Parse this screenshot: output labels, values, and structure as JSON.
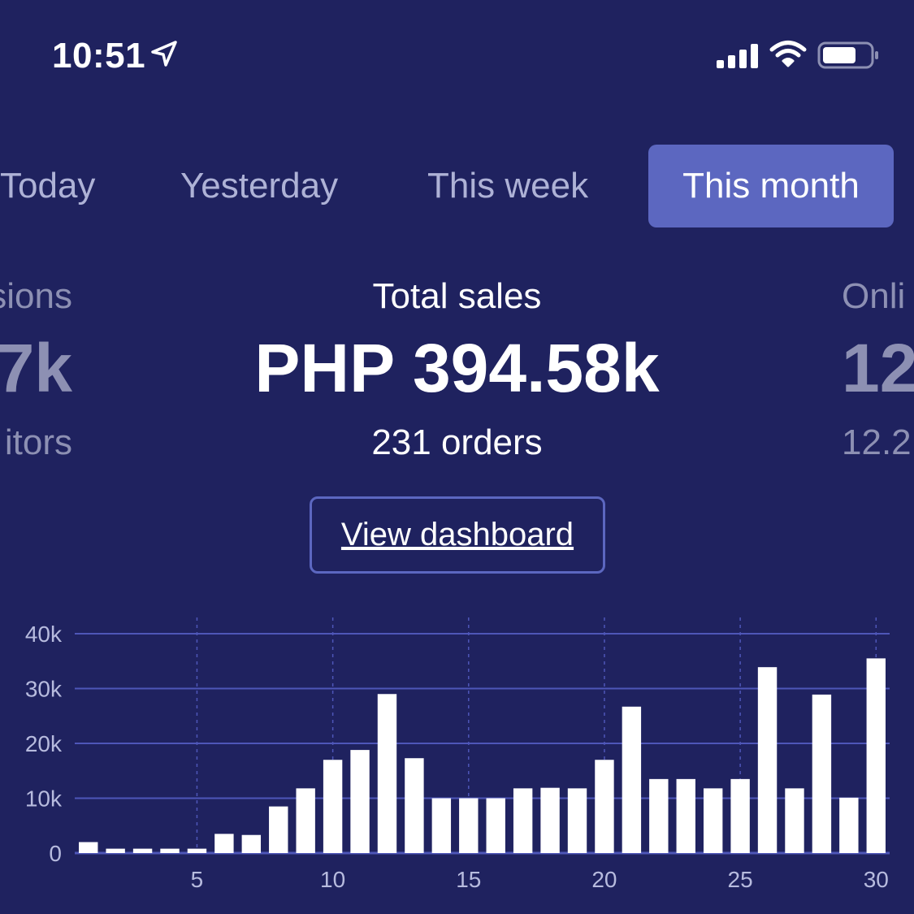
{
  "status_bar": {
    "time": "10:51",
    "icons": [
      "location-arrow-icon",
      "cellular-signal-icon",
      "wifi-icon",
      "battery-icon"
    ]
  },
  "tabs": [
    {
      "label": "Today",
      "selected": false
    },
    {
      "label": "Yesterday",
      "selected": false
    },
    {
      "label": "This week",
      "selected": false
    },
    {
      "label": "This month",
      "selected": true
    }
  ],
  "stats": {
    "left": {
      "label": "sions",
      "value": "7k",
      "sub": "itors"
    },
    "center": {
      "label": "Total sales",
      "value": "PHP 394.58k",
      "sub": "231 orders"
    },
    "right": {
      "label": "Onli",
      "value": "12",
      "sub": "12.2"
    }
  },
  "view_dashboard_label": "View dashboard",
  "colors": {
    "background": "#1f225f",
    "accent": "#5c67c0",
    "bar": "#ffffff",
    "grid": "#4e56b8",
    "muted_text": "#8d90b3"
  },
  "chart_data": {
    "type": "bar",
    "x": [
      1,
      2,
      3,
      4,
      5,
      6,
      7,
      8,
      9,
      10,
      11,
      12,
      13,
      14,
      15,
      16,
      17,
      18,
      19,
      20,
      21,
      22,
      23,
      24,
      25,
      26,
      27,
      28,
      29,
      30
    ],
    "values": [
      2000,
      800,
      800,
      800,
      800,
      3500,
      3300,
      8500,
      11800,
      17000,
      18800,
      29000,
      17300,
      10000,
      10000,
      10000,
      11800,
      11900,
      11800,
      17000,
      26700,
      13500,
      13500,
      11800,
      13500,
      33900,
      11800,
      28900,
      10100,
      35500
    ],
    "y_ticks": [
      "0",
      "10k",
      "20k",
      "30k",
      "40k"
    ],
    "y_tick_values": [
      0,
      10000,
      20000,
      30000,
      40000
    ],
    "x_ticks": [
      "5",
      "10",
      "15",
      "20",
      "25",
      "30"
    ],
    "x_tick_values": [
      5,
      10,
      15,
      20,
      25,
      30
    ],
    "ylim": [
      0,
      40000
    ],
    "xlim": [
      0.5,
      30.5
    ],
    "grid": true,
    "title": "",
    "xlabel": "",
    "ylabel": ""
  }
}
